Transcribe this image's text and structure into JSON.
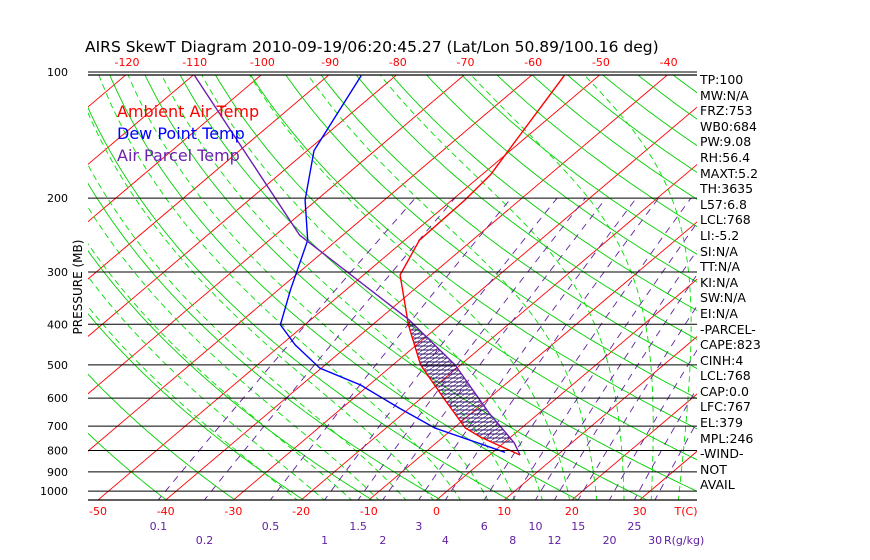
{
  "title": "AIRS SkewT Diagram 2010-09-19/06:20:45.27 (Lat/Lon 50.89/100.16 deg)",
  "legend": [
    {
      "label": "Ambient Air Temp",
      "color": "#ff0000"
    },
    {
      "label": "Dew Point Temp",
      "color": "#0000ff"
    },
    {
      "label": "Air Parcel Temp",
      "color": "#6a20b0"
    }
  ],
  "side_panel": [
    "TP:100",
    "MW:N/A",
    "FRZ:753",
    "WB0:684",
    "PW:9.08",
    "RH:56.4",
    "MAXT:5.2",
    "TH:3635",
    "L57:6.8",
    "LCL:768",
    "LI:-5.2",
    "SI:N/A",
    "TT:N/A",
    "KI:N/A",
    "SW:N/A",
    "EI:N/A",
    "-PARCEL-",
    "CAPE:823",
    "CINH:4",
    "LCL:768",
    "CAP:0.0",
    "LFC:767",
    "EL:379",
    "MPL:246",
    "-WIND-",
    "NOT",
    "AVAIL"
  ],
  "colors": {
    "isotherm": "#ff0000",
    "dry_adiabat": "#00d000",
    "moist_adiabat": "#00e000",
    "mixing_ratio": "#6020a0",
    "temp": "#ff0000",
    "dewpoint": "#0000ff",
    "parcel": "#6a20b0"
  },
  "chart_data": {
    "type": "skewt",
    "title": "AIRS SkewT Diagram 2010-09-19/06:20:45.27 (Lat/Lon 50.89/100.16 deg)",
    "ylabel": "PRESSURE (MB)",
    "xlabel": "T(C)",
    "mixing_ratio_label": "R(g/kg)",
    "pressure_ticks": [
      100,
      200,
      300,
      400,
      500,
      600,
      700,
      800,
      900,
      1000
    ],
    "bottom_temp_ticks": [
      -50,
      -40,
      -30,
      -20,
      -10,
      0,
      10,
      20,
      30
    ],
    "top_temp_ticks": [
      -120,
      -110,
      -100,
      -90,
      -80,
      -70,
      -60,
      -50,
      -40
    ],
    "mixing_ratio_ticks": [
      "0.1",
      "0.2",
      "0.5",
      "1",
      "1.5",
      "2",
      "3",
      "4",
      "6",
      "8",
      "10",
      "12",
      "15",
      "20",
      "25",
      "30"
    ],
    "ylim": [
      100,
      1050
    ],
    "series": [
      {
        "name": "Ambient Air Temp",
        "p": [
          820,
          743,
          707,
          606,
          500,
          401,
          305,
          252,
          202,
          176,
          141,
          102
        ],
        "t": [
          4.5,
          -4.5,
          -8.3,
          -16.2,
          -25.9,
          -34.7,
          -44.6,
          -47.8,
          -48.1,
          -48.7,
          -51.3,
          -55.1
        ]
      },
      {
        "name": "Dew Point Temp",
        "p": [
          808,
          707,
          635,
          558,
          509,
          448,
          401,
          331,
          252,
          202,
          154,
          102
        ],
        "t": [
          1.8,
          -12.8,
          -21.4,
          -31.3,
          -40.2,
          -47.9,
          -53.6,
          -58.2,
          -64.3,
          -71.7,
          -79.0,
          -85.1
        ]
      },
      {
        "name": "Air Parcel Temp",
        "p": [
          820,
          767,
          650,
          500,
          390,
          245,
          102
        ],
        "t": [
          4.5,
          1.5,
          -7.5,
          -20.8,
          -35.5,
          -66.4,
          -109.7
        ]
      }
    ],
    "cape_region": {
      "p_bottom": 767,
      "p_top": 390
    }
  }
}
